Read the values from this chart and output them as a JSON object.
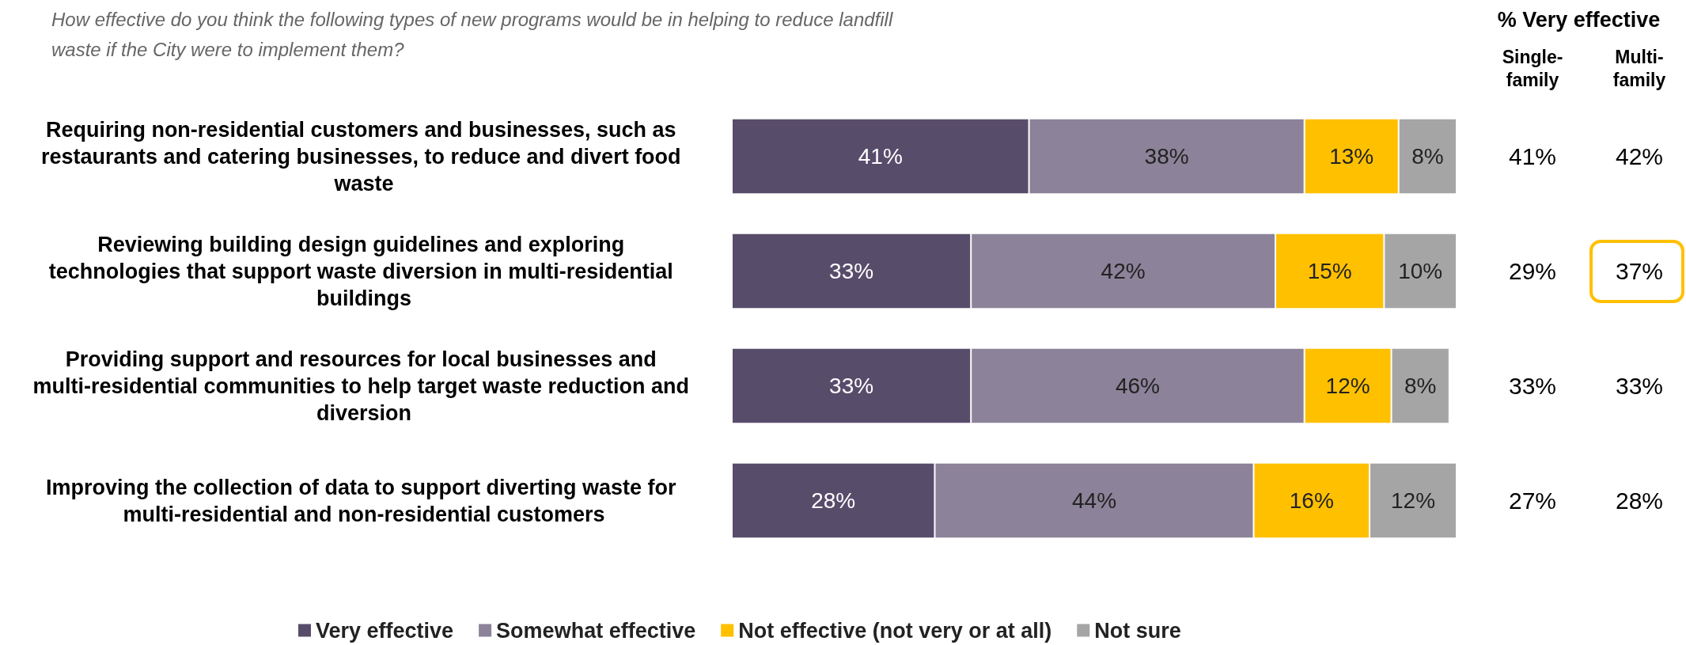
{
  "chart_data": [
    {
      "type": "bar",
      "orientation": "horizontal",
      "stacked": true,
      "title": "How effective do you think the following types of new programs would be in helping to reduce landfill waste if the City were to implement them?",
      "categories": [
        "Requiring non-residential customers and businesses, such as restaurants and catering businesses, to reduce and divert food waste",
        "Reviewing building design guidelines and exploring technologies that support waste diversion in multi-residential buildings",
        "Providing support and resources for local businesses and multi-residential communities to help target waste reduction and diversion",
        "Improving the collection of data to support diverting waste for multi-residential and non-residential customers"
      ],
      "series": [
        {
          "name": "Very effective",
          "color": "#584c6b",
          "values": [
            41,
            33,
            33,
            28
          ],
          "value_labels": [
            "41%",
            "33%",
            "33%",
            "28%"
          ]
        },
        {
          "name": "Somewhat effective",
          "color": "#8c8299",
          "values": [
            38,
            42,
            46,
            44
          ],
          "value_labels": [
            "38%",
            "42%",
            "46%",
            "44%"
          ]
        },
        {
          "name": "Not effective (not very or at all)",
          "color": "#ffc000",
          "values": [
            13,
            15,
            12,
            16
          ],
          "value_labels": [
            "13%",
            "15%",
            "12%",
            "16%"
          ]
        },
        {
          "name": "Not sure",
          "color": "#a5a5a5",
          "values": [
            8,
            10,
            8,
            12
          ],
          "value_labels": [
            "8%",
            "10%",
            "8%",
            "12%"
          ]
        }
      ],
      "xlim": [
        0,
        100
      ],
      "tick_labels": "y",
      "grid": false,
      "legend": "bottom"
    },
    {
      "type": "other",
      "title": "% Very effective",
      "annotations": [
        "Single-family",
        "Multi-family",
        "41%",
        "42%",
        "29%",
        "37%",
        "33%",
        "33%",
        "27%",
        "28%"
      ]
    }
  ]
}
